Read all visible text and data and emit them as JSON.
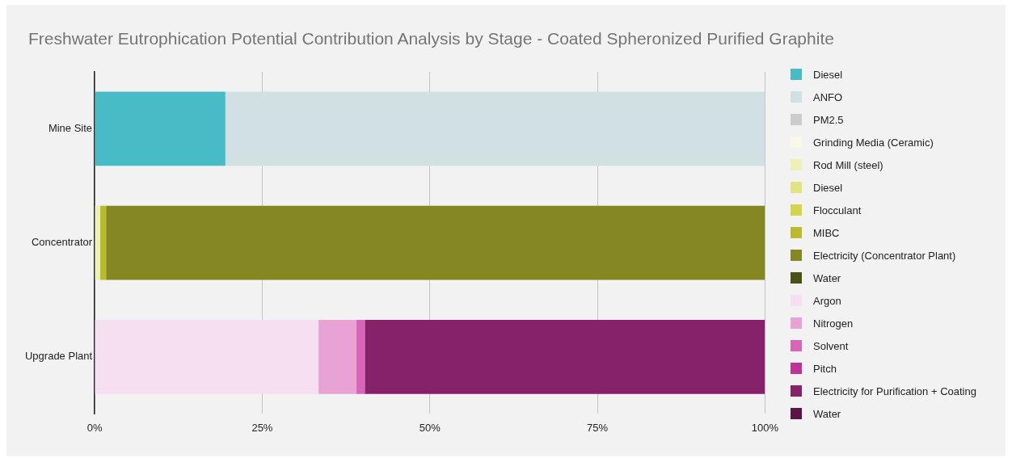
{
  "chart_data": {
    "type": "bar",
    "orientation": "horizontal",
    "stacked": true,
    "title": "Freshwater Eutrophication Potential Contribution Analysis by Stage - Coated Spheronized Purified Graphite",
    "categories": [
      "Mine Site",
      "Concentrator",
      "Upgrade Plant"
    ],
    "series": [
      {
        "name": "Diesel",
        "color": "#47bbc6",
        "values": [
          19.5,
          0,
          0
        ]
      },
      {
        "name": "ANFO",
        "color": "#d1e0e3",
        "values": [
          80.5,
          0,
          0
        ]
      },
      {
        "name": "PM2.5",
        "color": "#cccccc",
        "values": [
          0,
          0,
          0
        ]
      },
      {
        "name": "Grinding Media (Ceramic)",
        "color": "#f7f9e4",
        "values": [
          0,
          0,
          0
        ]
      },
      {
        "name": "Rod Mill (steel)",
        "color": "#eef1b5",
        "values": [
          0,
          0.8,
          0
        ]
      },
      {
        "name": "Diesel",
        "color": "#e2e57f",
        "values": [
          0,
          0,
          0
        ]
      },
      {
        "name": "Flocculant",
        "color": "#d4d64a",
        "values": [
          0,
          0,
          0
        ]
      },
      {
        "name": "MIBC",
        "color": "#b8bb2a",
        "values": [
          0,
          0.9,
          0
        ]
      },
      {
        "name": "Electricity (Concentrator Plant)",
        "color": "#848722",
        "values": [
          0,
          98.3,
          0
        ]
      },
      {
        "name": "Water",
        "color": "#4c5216",
        "values": [
          0,
          0,
          0
        ]
      },
      {
        "name": "Argon",
        "color": "#f6dff0",
        "values": [
          0,
          0,
          33.4
        ]
      },
      {
        "name": "Nitrogen",
        "color": "#e8a2d4",
        "values": [
          0,
          0,
          5.6
        ]
      },
      {
        "name": "Solvent",
        "color": "#d965b8",
        "values": [
          0,
          0,
          1.3
        ]
      },
      {
        "name": "Pitch",
        "color": "#bf3399",
        "values": [
          0,
          0,
          0
        ]
      },
      {
        "name": "Electricity for Purification + Coating",
        "color": "#86226a",
        "values": [
          0,
          0,
          59.7
        ]
      },
      {
        "name": "Water",
        "color": "#5a1446",
        "values": [
          0,
          0,
          0
        ]
      }
    ],
    "xlim": [
      0,
      100
    ],
    "xticks": [
      {
        "value": 0,
        "label": "0%"
      },
      {
        "value": 25,
        "label": "25%"
      },
      {
        "value": 50,
        "label": "50%"
      },
      {
        "value": 75,
        "label": "75%"
      },
      {
        "value": 100,
        "label": "100%"
      }
    ],
    "grid": "x",
    "legend": "right"
  }
}
